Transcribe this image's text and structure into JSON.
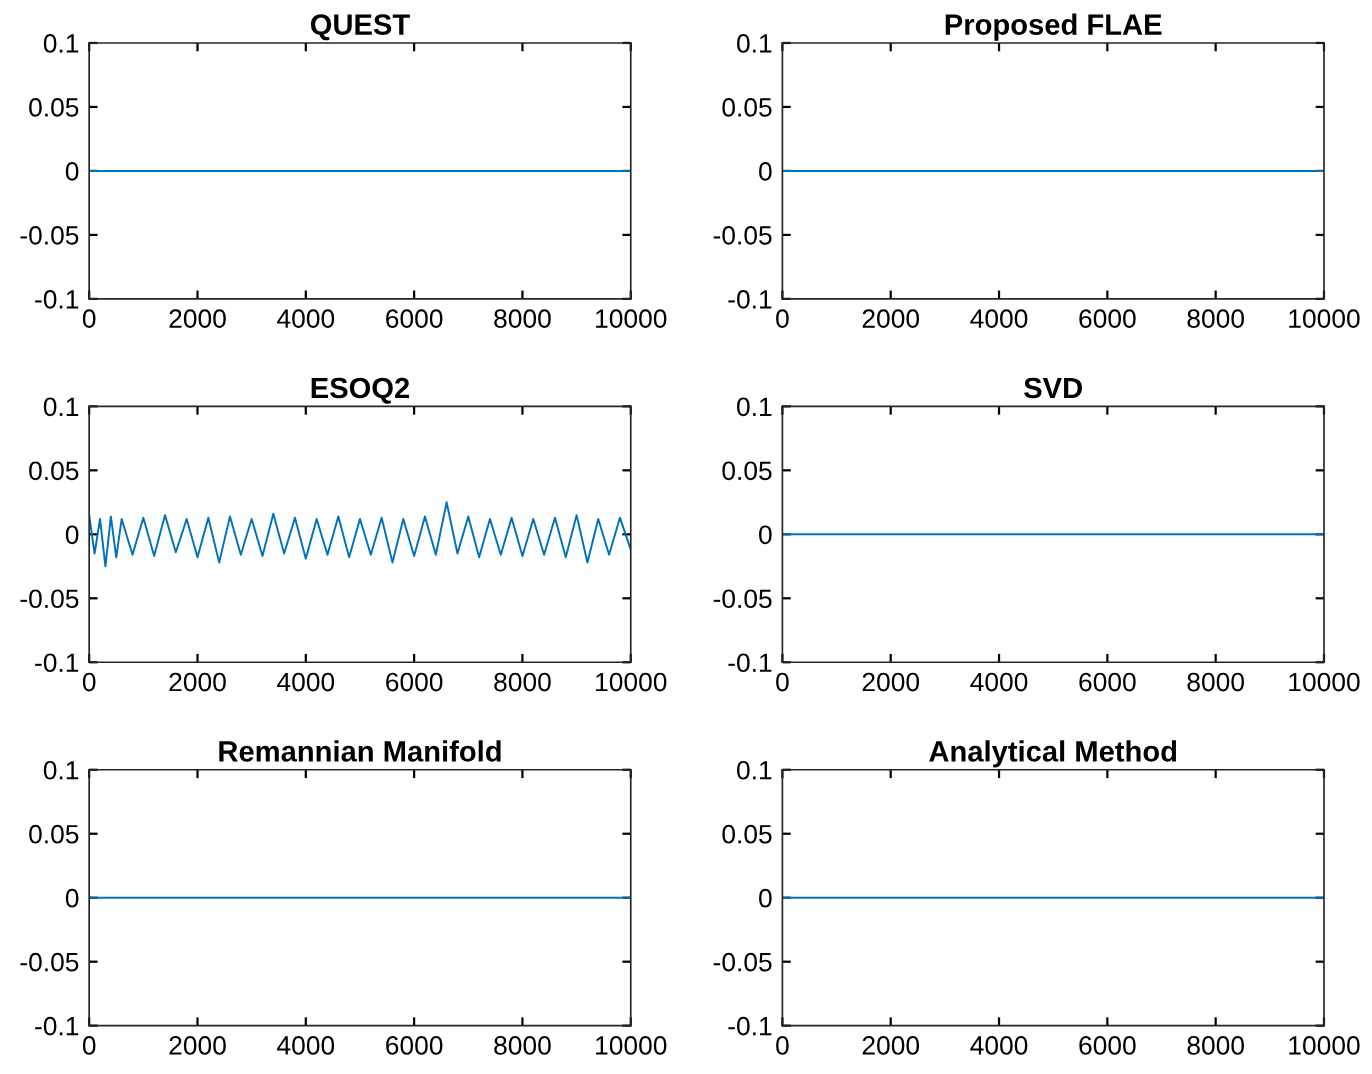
{
  "chart_data": [
    {
      "type": "line",
      "title": "QUEST",
      "x": [
        0,
        10000
      ],
      "series": [
        {
          "color": "#0072bd",
          "values": [
            0,
            0
          ]
        }
      ],
      "xlim": [
        0,
        10000
      ],
      "xticks": [
        0,
        2000,
        4000,
        6000,
        8000,
        10000
      ],
      "ylim": [
        -0.1,
        0.1
      ],
      "yticks": [
        -0.1,
        -0.05,
        0,
        0.05,
        0.1
      ],
      "grid": false,
      "legend": false
    },
    {
      "type": "line",
      "title": "Proposed FLAE",
      "x": [
        0,
        10000
      ],
      "series": [
        {
          "color": "#0072bd",
          "values": [
            0,
            0
          ]
        }
      ],
      "xlim": [
        0,
        10000
      ],
      "xticks": [
        0,
        2000,
        4000,
        6000,
        8000,
        10000
      ],
      "ylim": [
        -0.1,
        0.1
      ],
      "yticks": [
        -0.1,
        -0.05,
        0,
        0.05,
        0.1
      ],
      "grid": false,
      "legend": false
    },
    {
      "type": "line",
      "title": "ESOQ2",
      "x": [
        0,
        100,
        200,
        300,
        400,
        500,
        600,
        800,
        1000,
        1200,
        1400,
        1600,
        1800,
        2000,
        2200,
        2400,
        2600,
        2800,
        3000,
        3200,
        3400,
        3600,
        3800,
        4000,
        4200,
        4400,
        4600,
        4800,
        5000,
        5200,
        5400,
        5600,
        5800,
        6000,
        6200,
        6400,
        6600,
        6800,
        7000,
        7200,
        7400,
        7600,
        7800,
        8000,
        8200,
        8400,
        8600,
        8800,
        9000,
        9200,
        9400,
        9600,
        9800,
        10000
      ],
      "series": [
        {
          "color": "#0072bd",
          "values": [
            0.015,
            -0.015,
            0.012,
            -0.025,
            0.014,
            -0.018,
            0.012,
            -0.016,
            0.013,
            -0.017,
            0.015,
            -0.014,
            0.012,
            -0.018,
            0.013,
            -0.022,
            0.014,
            -0.016,
            0.012,
            -0.017,
            0.016,
            -0.015,
            0.013,
            -0.019,
            0.012,
            -0.016,
            0.014,
            -0.018,
            0.012,
            -0.016,
            0.013,
            -0.022,
            0.012,
            -0.017,
            0.014,
            -0.016,
            0.025,
            -0.015,
            0.014,
            -0.018,
            0.012,
            -0.016,
            0.013,
            -0.017,
            0.012,
            -0.016,
            0.013,
            -0.018,
            0.015,
            -0.022,
            0.012,
            -0.016,
            0.013,
            -0.012
          ]
        }
      ],
      "xlim": [
        0,
        10000
      ],
      "xticks": [
        0,
        2000,
        4000,
        6000,
        8000,
        10000
      ],
      "ylim": [
        -0.1,
        0.1
      ],
      "yticks": [
        -0.1,
        -0.05,
        0,
        0.05,
        0.1
      ],
      "grid": false,
      "legend": false
    },
    {
      "type": "line",
      "title": "SVD",
      "x": [
        0,
        10000
      ],
      "series": [
        {
          "color": "#0072bd",
          "values": [
            0,
            0
          ]
        }
      ],
      "xlim": [
        0,
        10000
      ],
      "xticks": [
        0,
        2000,
        4000,
        6000,
        8000,
        10000
      ],
      "ylim": [
        -0.1,
        0.1
      ],
      "yticks": [
        -0.1,
        -0.05,
        0,
        0.05,
        0.1
      ],
      "grid": false,
      "legend": false
    },
    {
      "type": "line",
      "title": "Remannian Manifold",
      "x": [
        0,
        10000
      ],
      "series": [
        {
          "color": "#0072bd",
          "values": [
            0,
            0
          ]
        }
      ],
      "xlim": [
        0,
        10000
      ],
      "xticks": [
        0,
        2000,
        4000,
        6000,
        8000,
        10000
      ],
      "ylim": [
        -0.1,
        0.1
      ],
      "yticks": [
        -0.1,
        -0.05,
        0,
        0.05,
        0.1
      ],
      "grid": false,
      "legend": false
    },
    {
      "type": "line",
      "title": "Analytical Method",
      "x": [
        0,
        10000
      ],
      "series": [
        {
          "color": "#0072bd",
          "values": [
            0,
            0
          ]
        }
      ],
      "xlim": [
        0,
        10000
      ],
      "xticks": [
        0,
        2000,
        4000,
        6000,
        8000,
        10000
      ],
      "ylim": [
        -0.1,
        0.1
      ],
      "yticks": [
        -0.1,
        -0.05,
        0,
        0.05,
        0.1
      ],
      "grid": false,
      "legend": false
    }
  ]
}
